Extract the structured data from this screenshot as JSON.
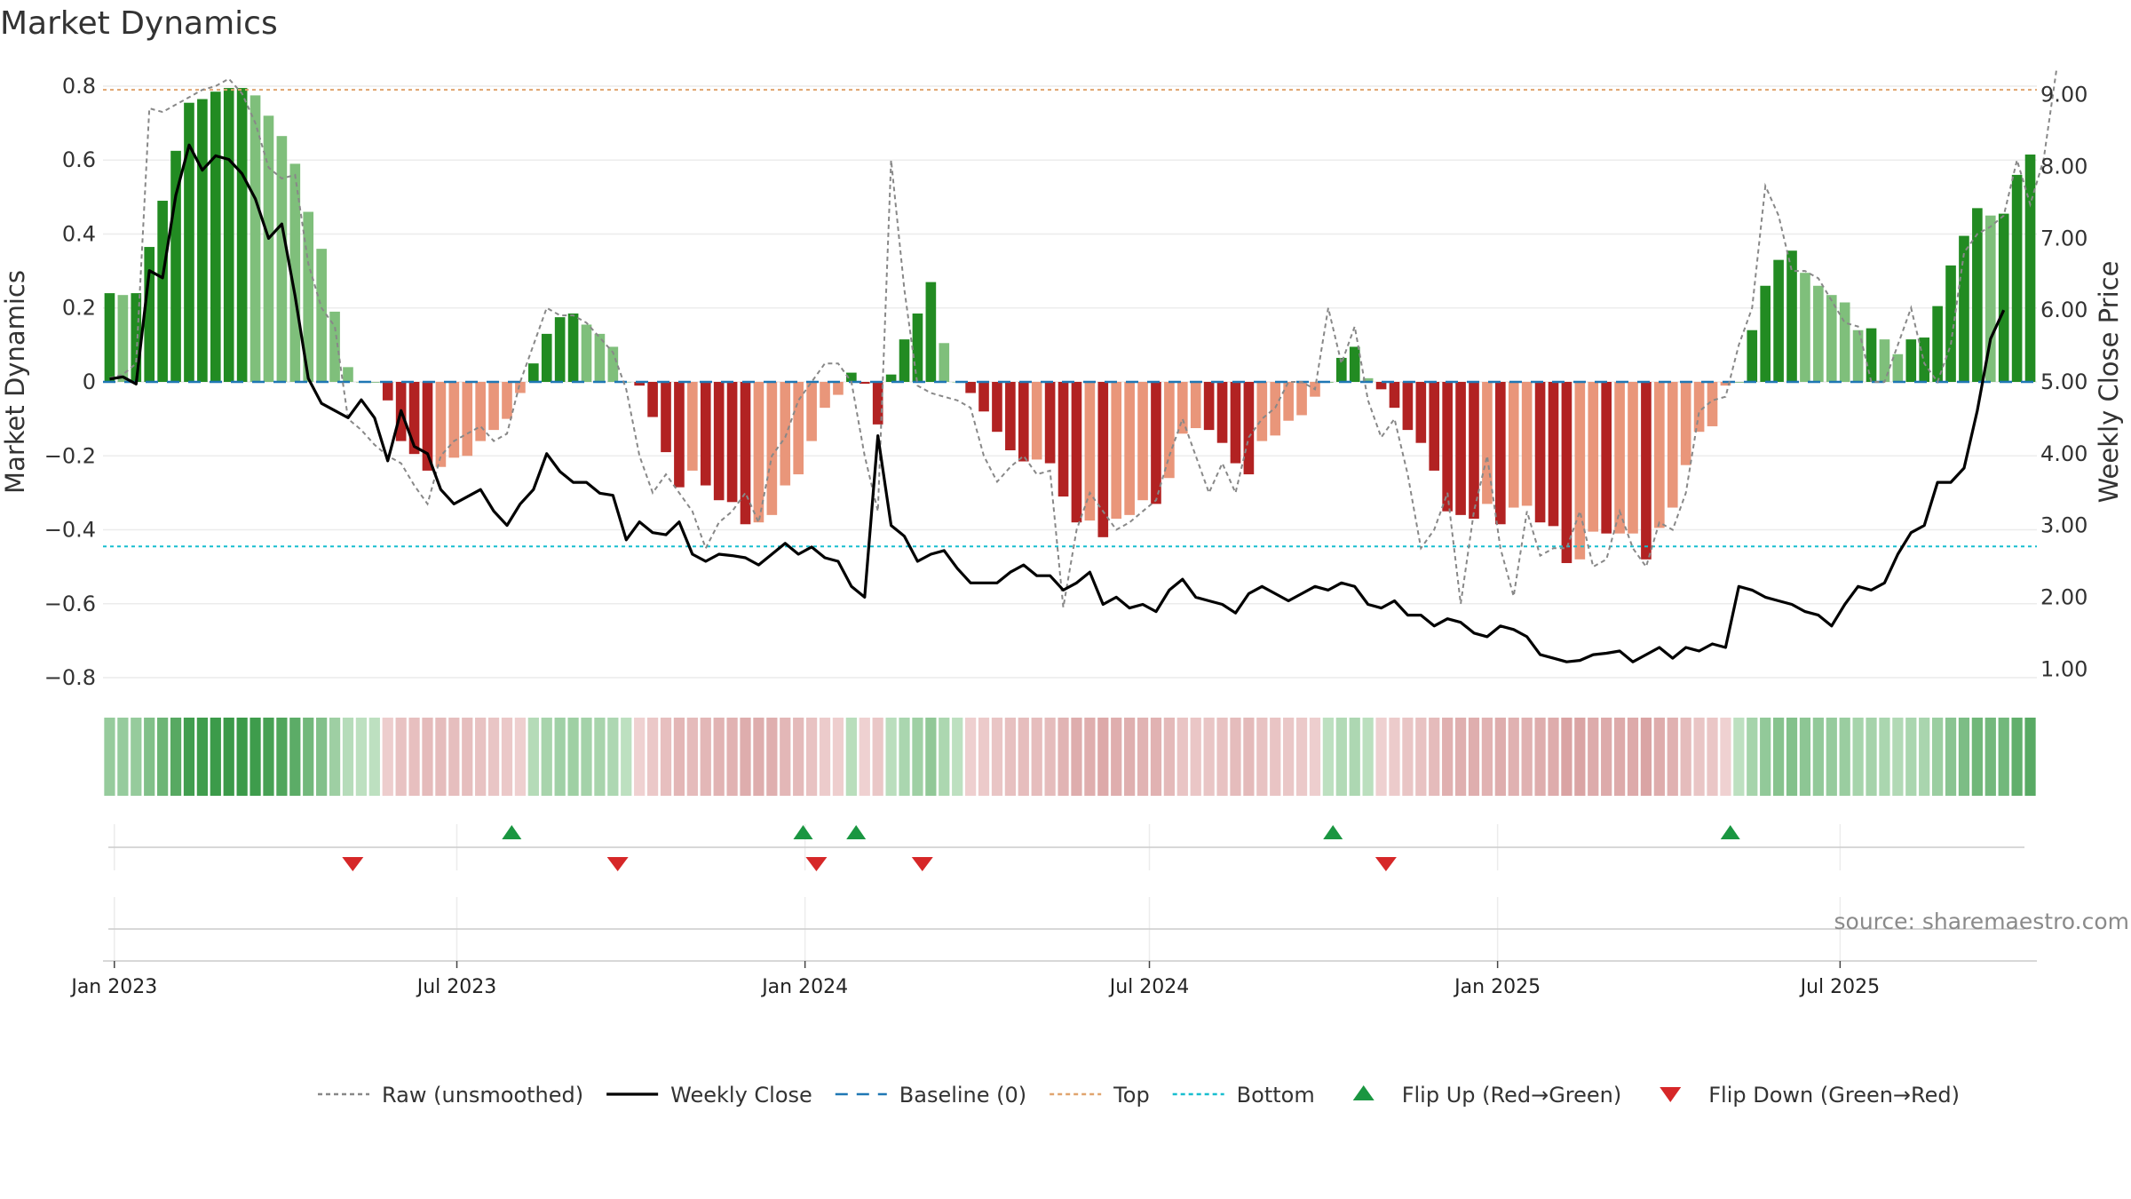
{
  "chart_data": {
    "type": "bar",
    "title": "Market Dynamics",
    "ylabel": "Market Dynamics",
    "y2label": "Weekly Close Price",
    "ylim": [
      -0.86,
      0.86
    ],
    "y2lim": [
      0.57,
      9.43
    ],
    "y_ticks": [
      0.8,
      0.6,
      0.4,
      0.2,
      0,
      -0.2,
      -0.4,
      -0.6,
      -0.8
    ],
    "y_tick_labels": [
      "0.8",
      "0.6",
      "0.4",
      "0.2",
      "0",
      "−0.2",
      "−0.4",
      "−0.6",
      "−0.8"
    ],
    "y2_ticks": [
      9,
      8,
      7,
      6,
      5,
      4,
      3,
      2,
      1
    ],
    "y2_tick_labels": [
      "9.00",
      "8.00",
      "7.00",
      "6.00",
      "5.00",
      "4.00",
      "3.00",
      "2.00",
      "1.00"
    ],
    "x_start": "2022-12-26",
    "x_tick_labels": [
      {
        "date": "2023-01-01",
        "label": "Jan 2023"
      },
      {
        "date": "2023-07-01",
        "label": "Jul 2023"
      },
      {
        "date": "2024-01-01",
        "label": "Jan 2024"
      },
      {
        "date": "2024-07-01",
        "label": "Jul 2024"
      },
      {
        "date": "2025-01-01",
        "label": "Jan 2025"
      },
      {
        "date": "2025-07-01",
        "label": "Jul 2025"
      }
    ],
    "top_level": 0.79,
    "bottom_level": -0.445,
    "grid": true,
    "legend_position": "bottom",
    "legend": [
      {
        "label": "Raw (unsmoothed)",
        "kind": "dotted",
        "color": "#888888"
      },
      {
        "label": "Weekly Close",
        "kind": "solid",
        "color": "#000000"
      },
      {
        "label": "Baseline (0)",
        "kind": "dashed",
        "color": "#1f77b4"
      },
      {
        "label": "Top",
        "kind": "dotted",
        "color": "#e0a46e"
      },
      {
        "label": "Bottom",
        "kind": "dotted",
        "color": "#17becf"
      },
      {
        "label": "Flip Up (Red→Green)",
        "kind": "tri-up",
        "color": "#1a9641"
      },
      {
        "label": "Flip Down (Green→Red)",
        "kind": "tri-down",
        "color": "#d62728"
      }
    ],
    "colors": {
      "green_dark": "#228b22",
      "green_light": "#7fbf7b",
      "red_dark": "#b22222",
      "red_light": "#e9967a",
      "raw_line": "#888888",
      "close_line": "#000000",
      "baseline": "#1f77b4",
      "top_line": "#e0a46e",
      "bottom_line": "#17becf",
      "flip_up": "#1a9641",
      "flip_down": "#d62728"
    },
    "series": [
      {
        "name": "Market Dynamics",
        "values": [
          0.24,
          0.235,
          0.24,
          0.365,
          0.49,
          0.625,
          0.755,
          0.765,
          0.785,
          0.795,
          0.795,
          0.775,
          0.72,
          0.665,
          0.59,
          0.46,
          0.36,
          0.19,
          0.04,
          0,
          0,
          -0.05,
          -0.16,
          -0.195,
          -0.24,
          -0.23,
          -0.205,
          -0.2,
          -0.16,
          -0.13,
          -0.1,
          -0.03,
          0.05,
          0.13,
          0.175,
          0.185,
          0.155,
          0.13,
          0.095,
          0,
          -0.01,
          -0.095,
          -0.19,
          -0.285,
          -0.24,
          -0.28,
          -0.32,
          -0.325,
          -0.385,
          -0.38,
          -0.36,
          -0.28,
          -0.25,
          -0.16,
          -0.07,
          -0.035,
          0.025,
          -0.005,
          -0.115,
          0.02,
          0.115,
          0.185,
          0.27,
          0.105,
          0,
          -0.03,
          -0.08,
          -0.135,
          -0.185,
          -0.215,
          -0.21,
          -0.22,
          -0.31,
          -0.38,
          -0.375,
          -0.42,
          -0.37,
          -0.36,
          -0.32,
          -0.33,
          -0.26,
          -0.14,
          -0.125,
          -0.13,
          -0.165,
          -0.22,
          -0.25,
          -0.16,
          -0.145,
          -0.105,
          -0.09,
          -0.04,
          0,
          0.065,
          0.095,
          0.01,
          -0.02,
          -0.07,
          -0.13,
          -0.165,
          -0.24,
          -0.35,
          -0.36,
          -0.37,
          -0.33,
          -0.385,
          -0.34,
          -0.335,
          -0.38,
          -0.39,
          -0.49,
          -0.48,
          -0.405,
          -0.41,
          -0.41,
          -0.41,
          -0.48,
          -0.395,
          -0.34,
          -0.225,
          -0.135,
          -0.12,
          -0.01,
          0,
          0.14,
          0.26,
          0.33,
          0.355,
          0.295,
          0.26,
          0.235,
          0.215,
          0.14,
          0.145,
          0.115,
          0.075,
          0.115,
          0.12,
          0.205,
          0.315,
          0.395,
          0.47,
          0.45,
          0.455,
          0.56,
          0.615
        ]
      },
      {
        "name": "Raw (unsmoothed)",
        "values": [
          0.01,
          0.02,
          0.05,
          0.74,
          0.73,
          0.75,
          0.77,
          0.79,
          0.8,
          0.82,
          0.78,
          0.7,
          0.58,
          0.55,
          0.56,
          0.32,
          0.2,
          0.15,
          -0.1,
          -0.13,
          -0.17,
          -0.2,
          -0.22,
          -0.28,
          -0.33,
          -0.2,
          -0.16,
          -0.14,
          -0.12,
          -0.16,
          -0.14,
          0,
          0.1,
          0.2,
          0.18,
          0.18,
          0.16,
          0.12,
          0.08,
          -0.02,
          -0.2,
          -0.3,
          -0.25,
          -0.3,
          -0.35,
          -0.45,
          -0.38,
          -0.35,
          -0.3,
          -0.38,
          -0.2,
          -0.15,
          -0.05,
          0,
          0.05,
          0.05,
          0,
          -0.2,
          -0.35,
          0.6,
          0.25,
          -0.01,
          -0.03,
          -0.04,
          -0.05,
          -0.07,
          -0.2,
          -0.27,
          -0.23,
          -0.2,
          -0.25,
          -0.24,
          -0.61,
          -0.4,
          -0.3,
          -0.35,
          -0.4,
          -0.38,
          -0.35,
          -0.32,
          -0.2,
          -0.1,
          -0.2,
          -0.3,
          -0.22,
          -0.3,
          -0.15,
          -0.1,
          -0.07,
          0,
          0,
          -0.02,
          0.2,
          0.05,
          0.15,
          -0.05,
          -0.15,
          -0.1,
          -0.25,
          -0.45,
          -0.4,
          -0.3,
          -0.6,
          -0.35,
          -0.2,
          -0.45,
          -0.58,
          -0.35,
          -0.47,
          -0.45,
          -0.45,
          -0.35,
          -0.5,
          -0.48,
          -0.35,
          -0.45,
          -0.5,
          -0.38,
          -0.4,
          -0.3,
          -0.08,
          -0.05,
          -0.04,
          0.1,
          0.2,
          0.53,
          0.45,
          0.3,
          0.3,
          0.28,
          0.22,
          0.16,
          0.15,
          0,
          0,
          0.1,
          0.2,
          0.05,
          0,
          0.1,
          0.35,
          0.4,
          0.42,
          0.45,
          0.6,
          0.48,
          0.6,
          0.85
        ]
      },
      {
        "name": "Weekly Close",
        "values": [
          5.04,
          5.07,
          4.97,
          6.55,
          6.45,
          7.6,
          8.3,
          7.95,
          8.15,
          8.1,
          7.9,
          7.55,
          7.0,
          7.2,
          6.2,
          5.05,
          4.7,
          4.6,
          4.5,
          4.75,
          4.5,
          3.9,
          4.6,
          4.1,
          4.0,
          3.5,
          3.3,
          3.4,
          3.5,
          3.2,
          3.0,
          3.3,
          3.5,
          4.0,
          3.75,
          3.6,
          3.6,
          3.45,
          3.42,
          2.8,
          3.05,
          2.9,
          2.87,
          3.05,
          2.6,
          2.5,
          2.6,
          2.58,
          2.55,
          2.45,
          2.6,
          2.75,
          2.6,
          2.7,
          2.55,
          2.5,
          2.15,
          2.0,
          4.25,
          3.0,
          2.85,
          2.5,
          2.6,
          2.65,
          2.4,
          2.2,
          2.2,
          2.2,
          2.35,
          2.45,
          2.3,
          2.3,
          2.1,
          2.2,
          2.35,
          1.9,
          2.0,
          1.85,
          1.9,
          1.8,
          2.1,
          2.25,
          2.0,
          1.95,
          1.9,
          1.78,
          2.05,
          2.15,
          2.05,
          1.95,
          2.05,
          2.15,
          2.1,
          2.2,
          2.15,
          1.9,
          1.85,
          1.95,
          1.75,
          1.75,
          1.6,
          1.7,
          1.65,
          1.5,
          1.45,
          1.6,
          1.55,
          1.45,
          1.2,
          1.15,
          1.1,
          1.12,
          1.2,
          1.22,
          1.25,
          1.1,
          1.2,
          1.3,
          1.15,
          1.3,
          1.25,
          1.35,
          1.3,
          2.15,
          2.1,
          2.0,
          1.95,
          1.9,
          1.8,
          1.75,
          1.6,
          1.9,
          2.15,
          2.1,
          2.2,
          2.6,
          2.9,
          3.0,
          3.6,
          3.6,
          3.8,
          4.6,
          5.6,
          6.0
        ]
      }
    ],
    "flip_up": [
      "2023-07-30",
      "2023-12-31",
      "2024-01-28",
      "2024-10-06",
      "2025-05-04"
    ],
    "flip_down": [
      "2023-05-07",
      "2023-09-24",
      "2024-01-07",
      "2024-03-03",
      "2024-11-03"
    ],
    "source": "source: sharemaestro.com"
  }
}
